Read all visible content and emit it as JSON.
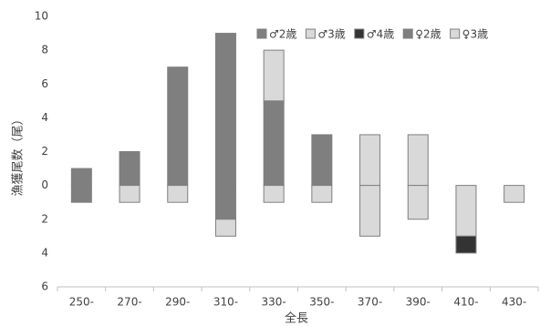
{
  "chart_data": {
    "type": "bar",
    "stacked": true,
    "y_label": "漁獲尾数（尾）",
    "x_label": "全長",
    "categories": [
      "250-",
      "270-",
      "290-",
      "310-",
      "330-",
      "350-",
      "370-",
      "390-",
      "410-",
      "430-"
    ],
    "series": [
      {
        "name": "♂2歳",
        "color": "#7f7f7f",
        "values": [
          1,
          2,
          7,
          9,
          5,
          3,
          null,
          null,
          null,
          null
        ]
      },
      {
        "name": "♂3歳",
        "color": "#d9d9d9",
        "values": [
          null,
          null,
          null,
          null,
          3,
          null,
          3,
          3,
          null,
          null
        ]
      },
      {
        "name": "♂4歳",
        "color": "#333333",
        "values": [
          null,
          null,
          null,
          null,
          null,
          null,
          null,
          null,
          -1,
          null
        ]
      },
      {
        "name": "♀2歳",
        "color": "#7f7f7f",
        "values": [
          -1,
          null,
          null,
          -2,
          null,
          null,
          null,
          null,
          null,
          null
        ]
      },
      {
        "name": "♀3歳",
        "color": "#d9d9d9",
        "values": [
          null,
          -1,
          -1,
          -1,
          -1,
          -1,
          -3,
          -2,
          -3,
          -1
        ]
      }
    ],
    "ylim": [
      -6,
      10
    ],
    "yticks": [
      {
        "value": -6,
        "label": "6"
      },
      {
        "value": -4,
        "label": "4"
      },
      {
        "value": -2,
        "label": "2"
      },
      0,
      2,
      4,
      6,
      8,
      10
    ],
    "grid": false,
    "legend": "top-right"
  }
}
